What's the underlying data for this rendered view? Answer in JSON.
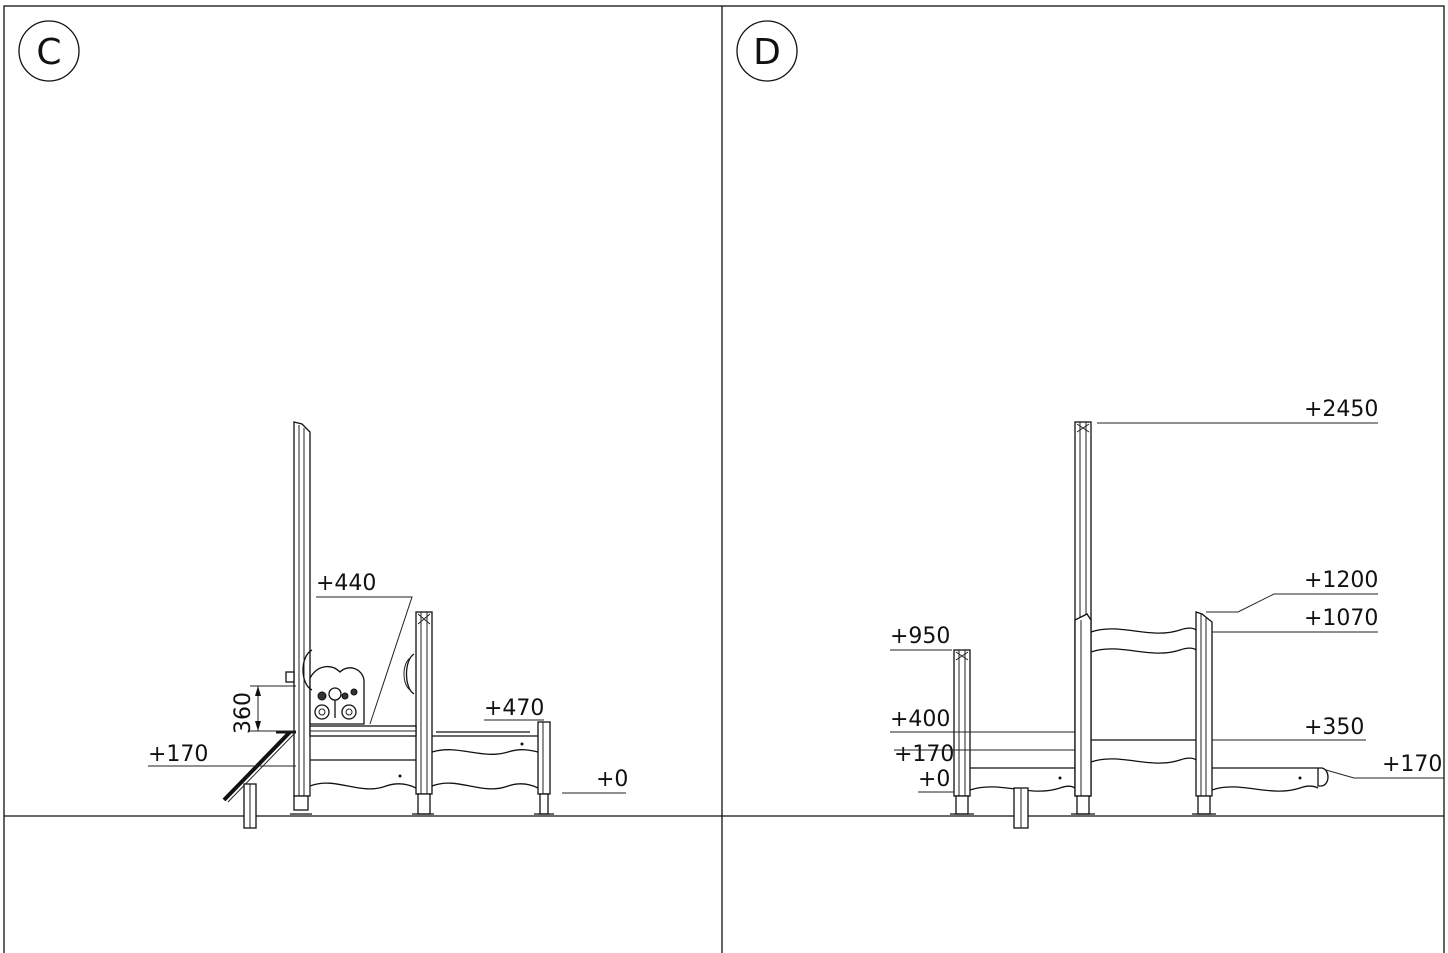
{
  "views": [
    {
      "id": "C",
      "label": "C",
      "elevations": [
        "+440",
        "+470",
        "+170",
        "+0"
      ],
      "dimension": "360"
    },
    {
      "id": "D",
      "label": "D",
      "elevations": [
        "+2450",
        "+1200",
        "+1070",
        "+950",
        "+400",
        "+350",
        "+170",
        "+0",
        "+170"
      ]
    }
  ]
}
